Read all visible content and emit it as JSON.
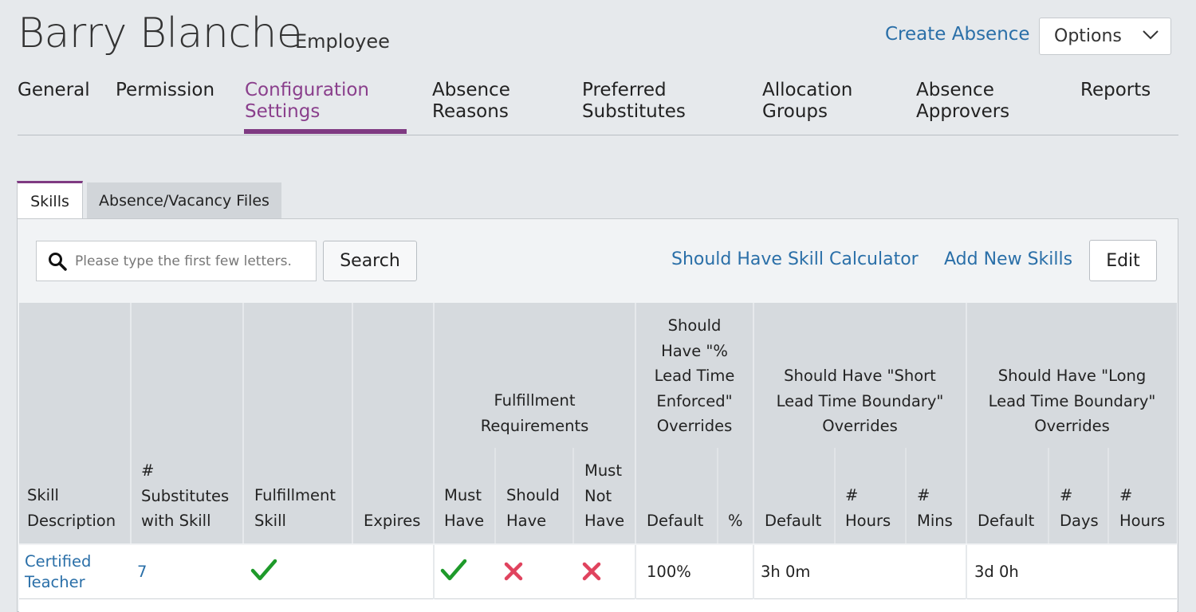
{
  "header": {
    "name": "Barry Blanche",
    "role": "Employee",
    "create_absence": "Create Absence",
    "options_label": "Options"
  },
  "nav": {
    "items": [
      {
        "l1": "General",
        "l2": ""
      },
      {
        "l1": "Permission",
        "l2": ""
      },
      {
        "l1": "Configuration",
        "l2": "Settings"
      },
      {
        "l1": "Absence",
        "l2": "Reasons"
      },
      {
        "l1": "Preferred",
        "l2": "Substitutes"
      },
      {
        "l1": "Allocation",
        "l2": "Groups"
      },
      {
        "l1": "Absence",
        "l2": "Approvers"
      },
      {
        "l1": "Reports",
        "l2": ""
      }
    ],
    "active_index": 2
  },
  "subtabs": [
    "Skills",
    "Absence/Vacancy Files"
  ],
  "toolbar": {
    "search_placeholder": "Please type the first few letters.",
    "search_label": "Search",
    "calculator_link": "Should Have Skill Calculator",
    "add_skills_link": "Add New Skills",
    "edit_label": "Edit"
  },
  "table": {
    "headers": {
      "skill_description": [
        "Skill",
        "Description"
      ],
      "substitutes": [
        "#",
        "Substitutes",
        "with Skill"
      ],
      "fulfillment_skill": [
        "Fulfillment",
        "Skill"
      ],
      "expires": "Expires",
      "fulfillment_requirements": [
        "Fulfillment",
        "Requirements"
      ],
      "must_have": [
        "Must",
        "Have"
      ],
      "should_have": [
        "Should",
        "Have"
      ],
      "must_not_have": [
        "Must",
        "Not",
        "Have"
      ],
      "pct_lead": [
        "Should",
        "Have \"%",
        "Lead Time",
        "Enforced\"",
        "Overrides"
      ],
      "pct_default": "Default",
      "pct_pct": "%",
      "short_lead": [
        "Should Have \"Short",
        "Lead Time Boundary\"",
        "Overrides"
      ],
      "short_default": "Default",
      "short_hours": [
        "#",
        "Hours"
      ],
      "short_mins": [
        "#",
        "Mins"
      ],
      "long_lead": [
        "Should Have \"Long",
        "Lead Time Boundary\"",
        "Overrides"
      ],
      "long_default": "Default",
      "long_days": [
        "#",
        "Days"
      ],
      "long_hours": [
        "#",
        "Hours"
      ]
    },
    "rows": [
      {
        "skill": [
          "Certified",
          "Teacher"
        ],
        "substitutes": "7",
        "fulfillment_skill_icon": "check-icon",
        "must_have_icon": "check-icon",
        "should_have_icon": "x-icon",
        "must_not_have_icon": "x-icon",
        "pct_default": "100%",
        "short_default": "3h 0m",
        "long_default": "3d 0h"
      }
    ]
  },
  "colors": {
    "accent": "#7f3a82",
    "link": "#2a6fa8",
    "check": "#1e9a2a",
    "cross": "#e0435e"
  }
}
